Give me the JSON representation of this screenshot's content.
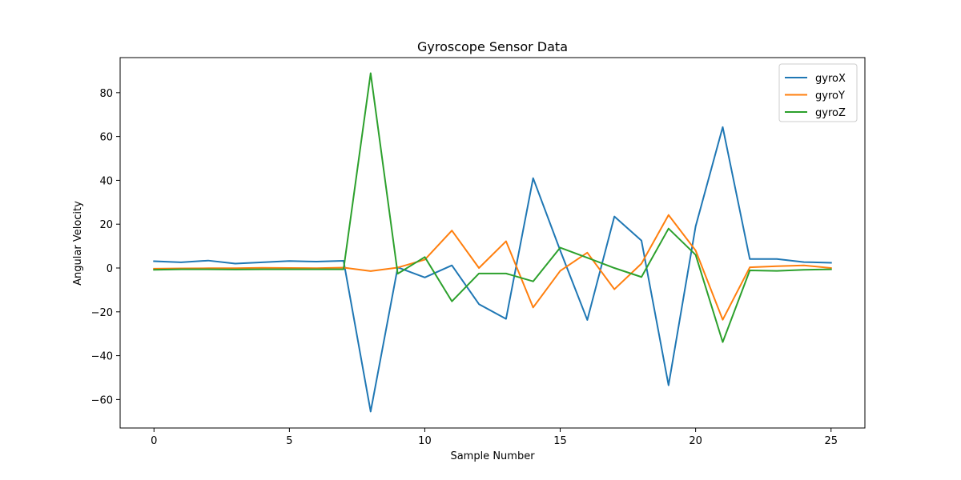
{
  "chart_data": {
    "type": "line",
    "title": "Gyroscope Sensor Data",
    "xlabel": "Sample Number",
    "ylabel": "Angular Velocity",
    "xlim": [
      -1.25,
      26.25
    ],
    "ylim": [
      -73,
      96
    ],
    "xticks": [
      0,
      5,
      10,
      15,
      20,
      25
    ],
    "yticks": [
      -60,
      -40,
      -20,
      0,
      20,
      40,
      60,
      80
    ],
    "grid": false,
    "legend_position": "top-right",
    "x": [
      0,
      1,
      2,
      3,
      4,
      5,
      6,
      7,
      8,
      9,
      10,
      11,
      12,
      13,
      14,
      15,
      16,
      17,
      18,
      19,
      20,
      21,
      22,
      23,
      24,
      25
    ],
    "series": [
      {
        "name": "gyroX",
        "color": "#1f77b4",
        "values": [
          3.1,
          2.6,
          3.4,
          2.0,
          2.6,
          3.2,
          2.9,
          3.3,
          -65.5,
          0.3,
          -4.3,
          1.2,
          -16.5,
          -23.2,
          41.0,
          8.0,
          -23.7,
          23.5,
          12.5,
          -53.5,
          19.0,
          64.3,
          4.1,
          4.1,
          2.7,
          2.4
        ]
      },
      {
        "name": "gyroY",
        "color": "#ff7f0e",
        "values": [
          -0.3,
          -0.2,
          -0.1,
          -0.1,
          0.1,
          0.0,
          -0.1,
          0.2,
          -1.4,
          0.2,
          3.8,
          17.1,
          0.0,
          12.2,
          -18.0,
          -1.3,
          7.0,
          -9.7,
          2.0,
          24.2,
          8.0,
          -23.6,
          0.3,
          0.8,
          1.2,
          0.0
        ]
      },
      {
        "name": "gyroZ",
        "color": "#2ca02c",
        "values": [
          -0.8,
          -0.6,
          -0.6,
          -0.7,
          -0.6,
          -0.6,
          -0.6,
          -0.6,
          88.9,
          -2.6,
          5.0,
          -15.2,
          -2.5,
          -2.5,
          -6.1,
          9.3,
          4.7,
          0.0,
          -4.1,
          18.0,
          6.0,
          -33.8,
          -1.1,
          -1.3,
          -0.8,
          -0.6
        ]
      }
    ]
  }
}
